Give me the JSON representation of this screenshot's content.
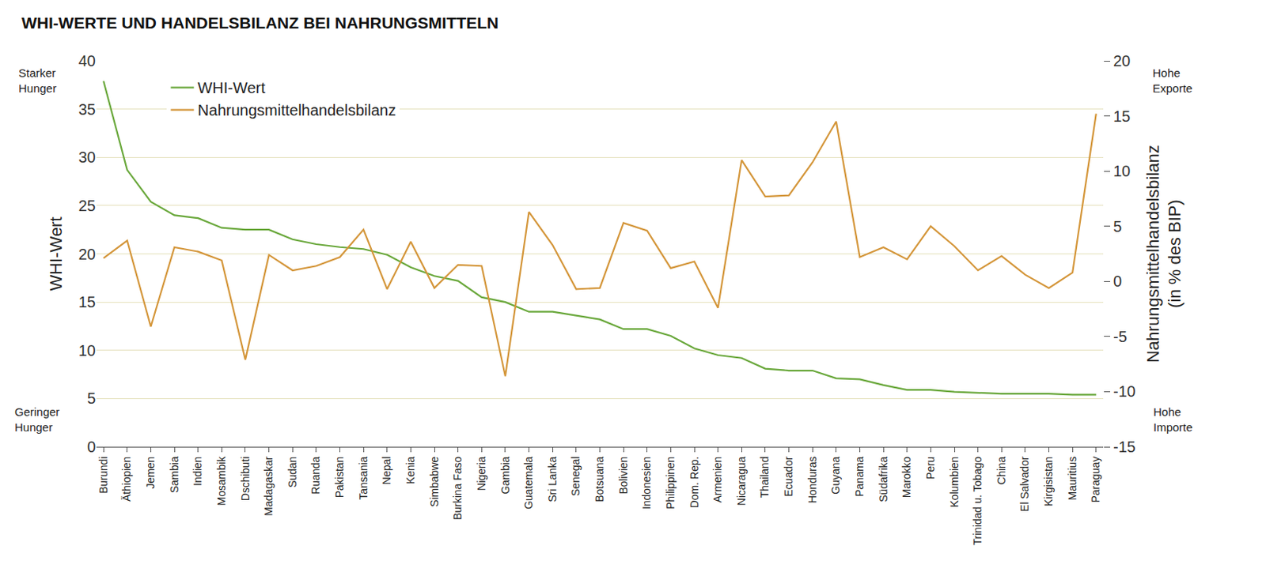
{
  "chart_data": {
    "type": "line",
    "title": "WHI-WERTE UND HANDELSBILANZ BEI NAHRUNGSMITTELN",
    "categories": [
      "Burundi",
      "Äthiopien",
      "Jemen",
      "Sambia",
      "Indien",
      "Mosambik",
      "Dschibuti",
      "Madagaskar",
      "Sudan",
      "Ruanda",
      "Pakistan",
      "Tansania",
      "Nepal",
      "Kenia",
      "Simbabwe",
      "Burkina Faso",
      "Nigeria",
      "Gambia",
      "Guatemala",
      "Sri Lanka",
      "Senegal",
      "Botsuana",
      "Bolivien",
      "Indonesien",
      "Philippinen",
      "Dom. Rep.",
      "Armenien",
      "Nicaragua",
      "Thailand",
      "Ecuador",
      "Honduras",
      "Guyana",
      "Panama",
      "Südafrika",
      "Marokko",
      "Peru",
      "Kolumbien",
      "Trinidad u. Tobago",
      "China",
      "El Salvador",
      "Kirgisistan",
      "Mauritius",
      "Paraguay"
    ],
    "series": [
      {
        "name": "WHI-Wert",
        "color": "#6aa83c",
        "axis": "y",
        "values": [
          37.9,
          28.7,
          25.4,
          24.0,
          23.7,
          22.7,
          22.5,
          22.5,
          21.5,
          21.0,
          20.7,
          20.5,
          19.9,
          18.6,
          17.7,
          17.2,
          15.5,
          15.0,
          14.0,
          14.0,
          13.6,
          13.2,
          12.2,
          12.2,
          11.5,
          10.2,
          9.5,
          9.2,
          8.1,
          7.9,
          7.9,
          7.1,
          7.0,
          6.4,
          5.9,
          5.9,
          5.7,
          5.6,
          5.5,
          5.5,
          5.5,
          5.4,
          5.4
        ]
      },
      {
        "name": "Nahrungsmittelhandelsbilanz",
        "color": "#d4963a",
        "axis": "y2",
        "values": [
          2.1,
          3.7,
          -4.1,
          3.1,
          2.7,
          1.9,
          -7.1,
          2.4,
          1.0,
          1.4,
          2.2,
          4.7,
          -0.7,
          3.6,
          -0.6,
          1.5,
          1.4,
          -8.6,
          6.3,
          3.3,
          -0.7,
          -0.6,
          5.3,
          4.6,
          1.2,
          1.8,
          -2.4,
          11.0,
          7.7,
          7.8,
          10.8,
          14.5,
          2.2,
          3.1,
          2.0,
          5.0,
          3.2,
          1.0,
          2.3,
          0.6,
          -0.6,
          0.8,
          15.2
        ]
      }
    ],
    "ylabel": "WHI-Wert",
    "y2label": [
      "Nahrungsmittelhandelsbilanz",
      "(in % des BIP)"
    ],
    "ylim": [
      0,
      40
    ],
    "yticks": [
      0,
      5,
      10,
      15,
      20,
      25,
      30,
      35,
      40
    ],
    "y2lim": [
      -15,
      20
    ],
    "y2ticks": [
      -15,
      -10,
      -5,
      0,
      5,
      10,
      15,
      20
    ],
    "annotations": {
      "y_top": "Starker Hunger",
      "y_bottom": "Geringer Hunger",
      "y2_top": "Hohe Exporte",
      "y2_bottom": "Hohe Importe"
    },
    "grid": true,
    "legend": "upper left"
  }
}
